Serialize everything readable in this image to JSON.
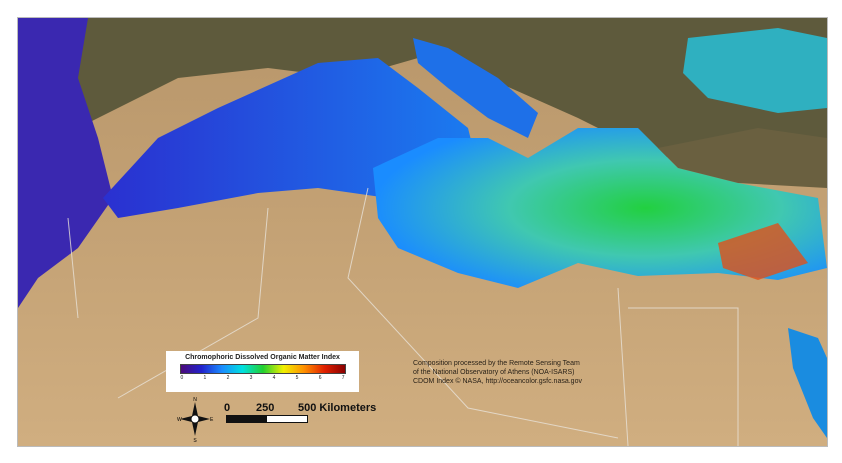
{
  "legend": {
    "title": "Chromophoric Dissolved Organic Matter Index",
    "ticks": [
      "0",
      "1",
      "2",
      "3",
      "4",
      "5",
      "6",
      "7"
    ],
    "colors": [
      "#4b0a7a",
      "#2222cc",
      "#1a8cff",
      "#00e0e0",
      "#22d030",
      "#f0f000",
      "#ff9000",
      "#e02000",
      "#8a0000"
    ]
  },
  "credits": {
    "line1": "Composition processed by the Remote Sensing Team",
    "line2": "of the National Observatory of Athens (NOA-ISARS)",
    "line3": "CDOM Index © NASA, http://oceancolor.gsfc.nasa.gov"
  },
  "scale": {
    "l0": "0",
    "l1": "250",
    "l2": "500 Kilometers"
  },
  "compass": {
    "n": "N",
    "s": "S",
    "e": "E",
    "w": "W"
  }
}
